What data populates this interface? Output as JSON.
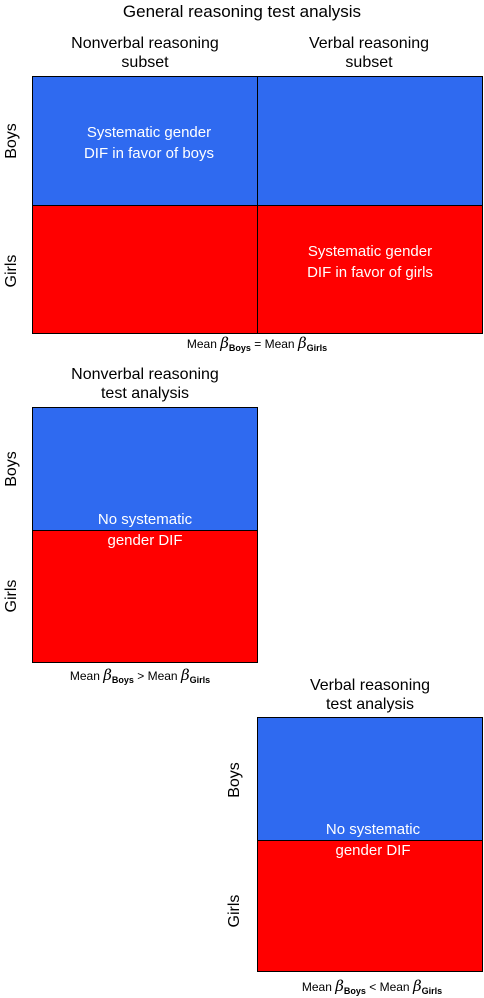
{
  "panel1": {
    "title": "General reasoning test analysis",
    "col1": "Nonverbal reasoning\nsubset",
    "col1_l1": "Nonverbal reasoning",
    "col1_l2": "subset",
    "col2_l1": "Verbal reasoning",
    "col2_l2": "subset",
    "row_top": "Boys",
    "row_bottom": "Girls",
    "boys_text_l1": "Systematic  gender",
    "boys_text_l2": "DIF in favor of boys",
    "girls_text_l1": "Systematic  gender",
    "girls_text_l2": "DIF in favor of girls",
    "caption": {
      "mean1": "Mean ",
      "beta": "β",
      "sub1": "Boys",
      "rel": " = Mean ",
      "sub2": "Girls"
    }
  },
  "panel2": {
    "title_l1": "Nonverbal reasoning",
    "title_l2": "test analysis",
    "row_top": "Boys",
    "row_bottom": "Girls",
    "text_l1": "No systematic",
    "text_l2": "gender  DIF",
    "caption": {
      "mean1": "Mean ",
      "beta": "β",
      "sub1": "Boys",
      "rel": " > Mean ",
      "sub2": "Girls"
    }
  },
  "panel3": {
    "title_l1": "Verbal reasoning",
    "title_l2": "test analysis",
    "row_top": "Boys",
    "row_bottom": "Girls",
    "text_l1": "No systematic",
    "text_l2": "gender  DIF",
    "caption": {
      "mean1": "Mean ",
      "beta": "β",
      "sub1": "Boys",
      "rel": " < Mean ",
      "sub2": "Girls"
    }
  },
  "colors": {
    "boys": "#2f6af0",
    "girls": "#ff0000"
  }
}
